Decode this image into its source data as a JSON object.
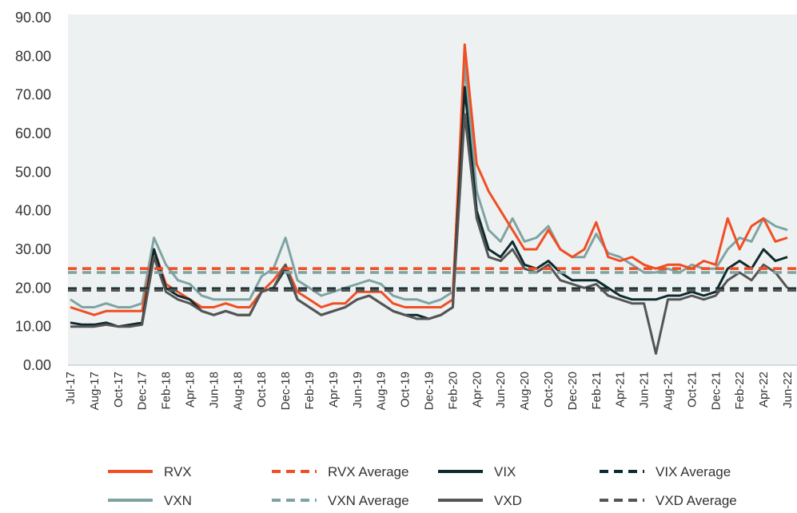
{
  "chart_data": {
    "type": "line",
    "categories": [
      "Jul-17",
      null,
      "Aug-17",
      null,
      "Oct-17",
      null,
      "Dec-17",
      null,
      "Feb-18",
      null,
      "Apr-18",
      null,
      "Jun-18",
      null,
      "Aug-18",
      null,
      "Oct-18",
      null,
      "Dec-18",
      null,
      "Feb-19",
      null,
      "Apr-19",
      null,
      "Jun-19",
      null,
      "Aug-19",
      null,
      "Oct-19",
      null,
      "Dec-19",
      null,
      "Feb-20",
      null,
      "Apr-20",
      null,
      "Jun-20",
      null,
      "Aug-20",
      null,
      "Oct-20",
      null,
      "Dec-20",
      null,
      "Feb-21",
      null,
      "Apr-21",
      null,
      "Jun-21",
      null,
      "Aug-21",
      null,
      "Oct-21",
      null,
      "Dec-21",
      null,
      "Feb-22",
      null,
      "Apr-22",
      null,
      "Jun-22"
    ],
    "ylim": [
      0,
      90
    ],
    "yticks": [
      {
        "value": 0,
        "label": "0.00"
      },
      {
        "value": 10,
        "label": "10.00"
      },
      {
        "value": 20,
        "label": "20.00"
      },
      {
        "value": 30,
        "label": "30.00"
      },
      {
        "value": 40,
        "label": "40.00"
      },
      {
        "value": 50,
        "label": "50.00"
      },
      {
        "value": 60,
        "label": "60.00"
      },
      {
        "value": 70,
        "label": "70.00"
      },
      {
        "value": 80,
        "label": "80.00"
      },
      {
        "value": 90,
        "label": "90.00"
      }
    ],
    "series": [
      {
        "name": "RVX",
        "color": "#f04e23",
        "values": [
          15,
          14,
          13,
          14,
          14,
          14,
          14,
          30,
          21,
          19,
          17,
          15,
          15,
          16,
          15,
          15,
          19,
          22,
          26,
          19,
          17,
          15,
          16,
          16,
          19,
          19,
          19,
          16,
          15,
          15,
          15,
          15,
          17,
          83,
          52,
          45,
          40,
          35,
          30,
          30,
          35,
          30,
          28,
          30,
          37,
          28,
          27,
          28,
          26,
          25,
          26,
          26,
          25,
          27,
          26,
          38,
          30,
          36,
          38,
          32,
          33
        ]
      },
      {
        "name": "RVX Average",
        "color": "#f04e23",
        "value": 25,
        "dashed": true
      },
      {
        "name": "VIX",
        "color": "#0d2b2e",
        "values": [
          11,
          10.5,
          10.5,
          11,
          10,
          10.5,
          11,
          30,
          20,
          18,
          17,
          14,
          13,
          14,
          13,
          13,
          19,
          20,
          25,
          17,
          15,
          13,
          14,
          15,
          17,
          18,
          16,
          14,
          13,
          13,
          12,
          13,
          15,
          72,
          40,
          30,
          28,
          32,
          26,
          25,
          27,
          24,
          22,
          22,
          22,
          20,
          18,
          17,
          17,
          17,
          18,
          18,
          19,
          18,
          19,
          25,
          27,
          25,
          30,
          27,
          28
        ]
      },
      {
        "name": "VIX Average",
        "color": "#0d2b2e",
        "value": 19.8,
        "dashed": true
      },
      {
        "name": "VXN",
        "color": "#7fa3a3",
        "values": [
          17,
          15,
          15,
          16,
          15,
          15,
          16,
          33,
          26,
          22,
          21,
          18,
          17,
          17,
          17,
          17,
          23,
          25,
          33,
          22,
          20,
          18,
          19,
          20,
          21,
          22,
          21,
          18,
          17,
          17,
          16,
          17,
          19,
          78,
          45,
          35,
          32,
          38,
          32,
          33,
          36,
          30,
          28,
          28,
          34,
          29,
          28,
          26,
          24,
          24,
          25,
          24,
          26,
          25,
          25,
          30,
          33,
          32,
          38,
          36,
          35
        ]
      },
      {
        "name": "VXN Average",
        "color": "#7fa3a3",
        "value": 24,
        "dashed": true
      },
      {
        "name": "VXD",
        "color": "#555555",
        "values": [
          10,
          10,
          10,
          10.5,
          10,
          10,
          10.5,
          28,
          19,
          17,
          16,
          14,
          13,
          14,
          13,
          13,
          19,
          20,
          26,
          17,
          15,
          13,
          14,
          15,
          17,
          18,
          16,
          14,
          13,
          12,
          12,
          13,
          15,
          65,
          38,
          28,
          27,
          30,
          25,
          24,
          26,
          22,
          21,
          20,
          21,
          18,
          17,
          16,
          16,
          3,
          17,
          17,
          18,
          17,
          18,
          22,
          24,
          22,
          26,
          24,
          20
        ]
      },
      {
        "name": "VXD Average",
        "color": "#555555",
        "value": 19.4,
        "dashed": true
      }
    ]
  }
}
